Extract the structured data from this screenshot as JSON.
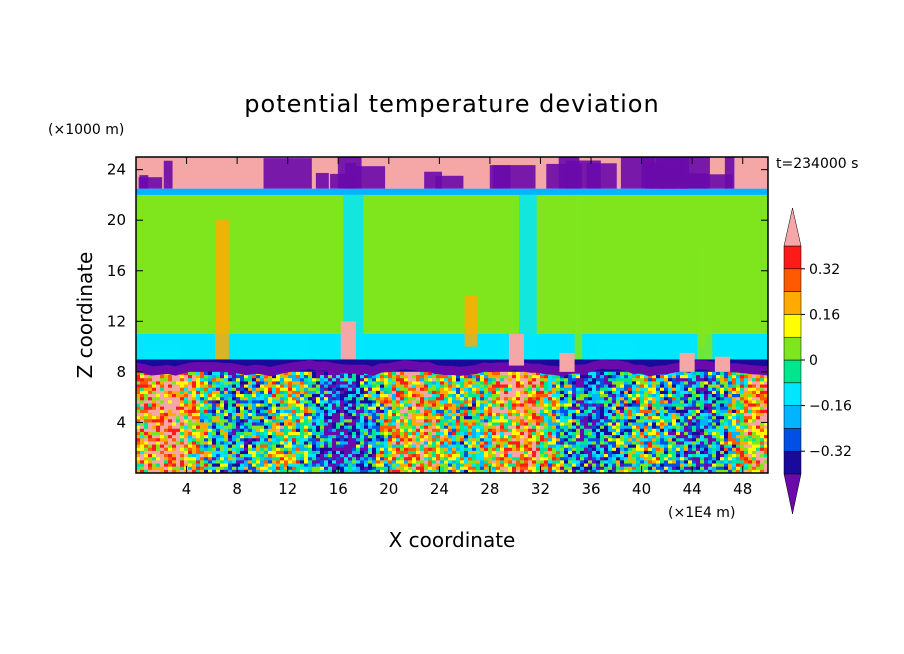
{
  "chart_data": {
    "type": "heatmap",
    "title": "potential temperature deviation",
    "xlabel": "X coordinate",
    "ylabel": "Z coordinate",
    "x_unit": "(×1E4 m)",
    "y_unit": "(×1000 m)",
    "time_label": "t=234000 s",
    "xlim": [
      0,
      50
    ],
    "ylim": [
      0,
      25
    ],
    "x_ticks": [
      "4",
      "8",
      "12",
      "16",
      "20",
      "24",
      "28",
      "32",
      "36",
      "40",
      "44",
      "48"
    ],
    "y_ticks": [
      "4",
      "8",
      "12",
      "16",
      "20",
      "24"
    ],
    "colorbar": {
      "levels": [
        -0.4,
        -0.32,
        -0.24,
        -0.16,
        -0.08,
        0,
        0.08,
        0.16,
        0.24,
        0.32,
        0.4
      ],
      "colors": [
        "#6a0aab",
        "#1a0a9c",
        "#0050e6",
        "#00b4ff",
        "#00e6ff",
        "#00e68c",
        "#7fe61e",
        "#ffff00",
        "#ffaa00",
        "#ff5a00",
        "#ff1a1a",
        "#f5a6a6"
      ],
      "labels": [
        "0.32",
        "0.16",
        "0",
        "−0.16",
        "−0.32"
      ],
      "extend": "both"
    },
    "layers": [
      {
        "z": [
          0,
          8
        ],
        "description_value": "turbulent mixed values from -0.4 to 0.4"
      },
      {
        "z": [
          8,
          9
        ],
        "value": -0.4
      },
      {
        "z": [
          9,
          11
        ],
        "value": -0.1
      },
      {
        "z": [
          11,
          22
        ],
        "value": 0.0
      },
      {
        "z": [
          22,
          22.5
        ],
        "value": -0.2
      },
      {
        "z": [
          22.5,
          25
        ],
        "value": 0.4
      }
    ]
  }
}
